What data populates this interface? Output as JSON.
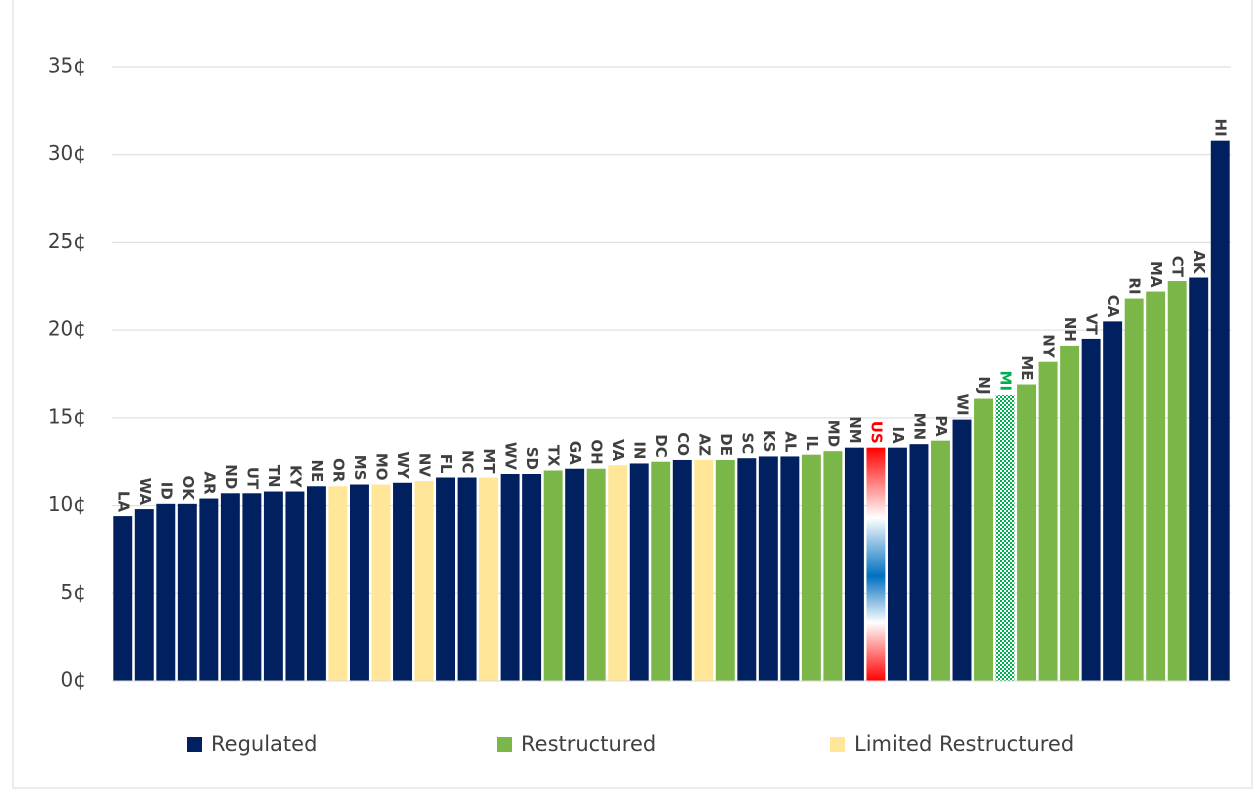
{
  "chart_data": {
    "type": "bar",
    "categories": [
      "LA",
      "WA",
      "ID",
      "OK",
      "AR",
      "ND",
      "UT",
      "TN",
      "KY",
      "NE",
      "OR",
      "MS",
      "MO",
      "WY",
      "NV",
      "FL",
      "NC",
      "MT",
      "WV",
      "SD",
      "TX",
      "GA",
      "OH",
      "VA",
      "IN",
      "DC",
      "CO",
      "AZ",
      "DE",
      "SC",
      "KS",
      "AL",
      "IL",
      "MD",
      "NM",
      "US",
      "IA",
      "MN",
      "PA",
      "WI",
      "NJ",
      "MI",
      "ME",
      "NY",
      "NH",
      "VT",
      "CA",
      "RI",
      "MA",
      "CT",
      "AK",
      "HI"
    ],
    "values": [
      9.4,
      9.8,
      10.1,
      10.1,
      10.4,
      10.7,
      10.7,
      10.8,
      10.8,
      11.1,
      11.1,
      11.2,
      11.2,
      11.3,
      11.4,
      11.6,
      11.6,
      11.6,
      11.8,
      11.8,
      12.0,
      12.1,
      12.1,
      12.3,
      12.4,
      12.5,
      12.6,
      12.6,
      12.6,
      12.7,
      12.8,
      12.8,
      12.9,
      13.1,
      13.3,
      13.3,
      13.3,
      13.5,
      13.7,
      14.9,
      16.1,
      16.3,
      16.9,
      18.2,
      19.1,
      19.5,
      20.5,
      21.8,
      22.2,
      22.8,
      23.0,
      30.8
    ],
    "colors": [
      "#002060",
      "#002060",
      "#002060",
      "#002060",
      "#002060",
      "#002060",
      "#002060",
      "#002060",
      "#002060",
      "#002060",
      "#ffe699",
      "#002060",
      "#ffe699",
      "#002060",
      "#ffe699",
      "#002060",
      "#002060",
      "#ffe699",
      "#002060",
      "#002060",
      "#7ab648",
      "#002060",
      "#7ab648",
      "#ffe699",
      "#002060",
      "#7ab648",
      "#002060",
      "#ffe699",
      "#7ab648",
      "#002060",
      "#002060",
      "#002060",
      "#7ab648",
      "#7ab648",
      "#002060",
      "#ff0000",
      "#002060",
      "#002060",
      "#7ab648",
      "#002060",
      "#7ab648",
      "#00b050",
      "#7ab648",
      "#7ab648",
      "#7ab648",
      "#002060",
      "#002060",
      "#7ab648",
      "#7ab648",
      "#7ab648",
      "#002060",
      "#002060"
    ],
    "bar_styles": [
      "solid",
      "solid",
      "solid",
      "solid",
      "solid",
      "solid",
      "solid",
      "solid",
      "solid",
      "solid",
      "solid",
      "solid",
      "solid",
      "solid",
      "solid",
      "solid",
      "solid",
      "solid",
      "solid",
      "solid",
      "solid",
      "solid",
      "solid",
      "solid",
      "solid",
      "solid",
      "solid",
      "solid",
      "solid",
      "solid",
      "solid",
      "solid",
      "solid",
      "solid",
      "solid",
      "gradient",
      "solid",
      "solid",
      "solid",
      "solid",
      "solid",
      "checker",
      "solid",
      "solid",
      "solid",
      "solid",
      "solid",
      "solid",
      "solid",
      "solid",
      "solid",
      "solid"
    ],
    "label_colors": [
      "#404040",
      "#404040",
      "#404040",
      "#404040",
      "#404040",
      "#404040",
      "#404040",
      "#404040",
      "#404040",
      "#404040",
      "#404040",
      "#404040",
      "#404040",
      "#404040",
      "#404040",
      "#404040",
      "#404040",
      "#404040",
      "#404040",
      "#404040",
      "#404040",
      "#404040",
      "#404040",
      "#404040",
      "#404040",
      "#404040",
      "#404040",
      "#404040",
      "#404040",
      "#404040",
      "#404040",
      "#404040",
      "#404040",
      "#404040",
      "#404040",
      "#ff0000",
      "#404040",
      "#404040",
      "#404040",
      "#404040",
      "#404040",
      "#00b050",
      "#404040",
      "#404040",
      "#404040",
      "#404040",
      "#404040",
      "#404040",
      "#404040",
      "#404040",
      "#404040",
      "#404040"
    ],
    "legend": [
      {
        "name": "Regulated",
        "color": "#002060"
      },
      {
        "name": "Restructured",
        "color": "#7ab648"
      },
      {
        "name": "Limited Restructured",
        "color": "#ffe699"
      }
    ],
    "ylim": [
      0,
      35
    ],
    "yticks": [
      {
        "value": 0,
        "label": "0¢"
      },
      {
        "value": 5,
        "label": "5¢"
      },
      {
        "value": 10,
        "label": "10¢"
      },
      {
        "value": 15,
        "label": "15¢"
      },
      {
        "value": 20,
        "label": "20¢"
      },
      {
        "value": 25,
        "label": "25¢"
      },
      {
        "value": 30,
        "label": "30¢"
      },
      {
        "value": 35,
        "label": "35¢"
      }
    ],
    "grid": true
  }
}
